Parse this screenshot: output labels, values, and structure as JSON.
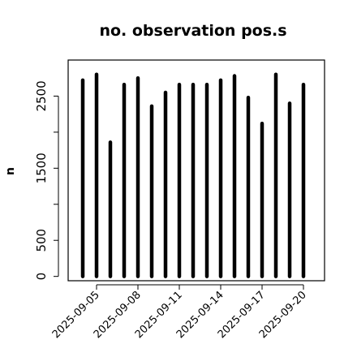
{
  "chart_data": {
    "type": "bar",
    "title": "no. observation pos.s",
    "ylabel": "n",
    "xlabel": "",
    "x": [
      "2025-09-04",
      "2025-09-05",
      "2025-09-06",
      "2025-09-07",
      "2025-09-08",
      "2025-09-09",
      "2025-09-10",
      "2025-09-11",
      "2025-09-12",
      "2025-09-13",
      "2025-09-14",
      "2025-09-15",
      "2025-09-16",
      "2025-09-17",
      "2025-09-18",
      "2025-09-19",
      "2025-09-20"
    ],
    "values": [
      2720,
      2800,
      1860,
      2660,
      2750,
      2360,
      2550,
      2660,
      2660,
      2660,
      2720,
      2780,
      2480,
      2120,
      2800,
      2400,
      2660
    ],
    "ylim": [
      -60,
      3000
    ],
    "yticks": [
      0,
      500,
      1500,
      2500
    ],
    "yticks_minor": [
      1000,
      2000
    ],
    "xticks": [
      "2025-09-05",
      "2025-09-08",
      "2025-09-11",
      "2025-09-14",
      "2025-09-17",
      "2025-09-20"
    ],
    "highlight_tick": "2025-09-11",
    "colors": {
      "bar": "#000000",
      "highlight_tick": "#228b22"
    }
  }
}
